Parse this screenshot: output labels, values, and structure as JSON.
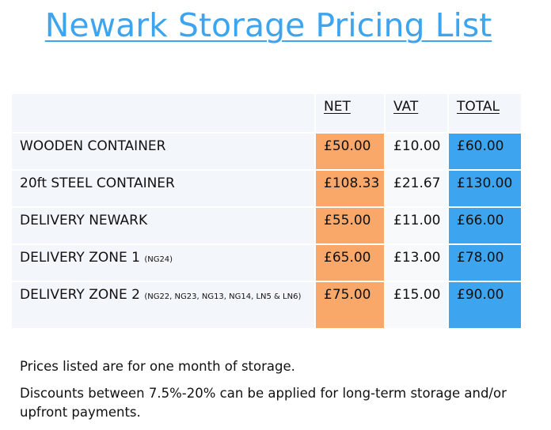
{
  "title": "Newark Storage Pricing List",
  "table": {
    "headers": {
      "item": "",
      "net": "NET",
      "vat": "VAT",
      "total": "TOTAL"
    },
    "rows": [
      {
        "item": "WOODEN CONTAINER",
        "note": "",
        "net": "£50.00",
        "vat": "£10.00",
        "total": "£60.00"
      },
      {
        "item": "20ft STEEL CONTAINER",
        "note": "",
        "net": "£108.33",
        "vat": "£21.67",
        "total": "£130.00"
      },
      {
        "item": "DELIVERY NEWARK",
        "note": "",
        "net": "£55.00",
        "vat": "£11.00",
        "total": "£66.00"
      },
      {
        "item": "DELIVERY ZONE 1",
        "note": "(NG24)",
        "net": "£65.00",
        "vat": "£13.00",
        "total": "£78.00"
      },
      {
        "item": "DELIVERY ZONE 2",
        "note": "(NG22, NG23, NG13, NG14, LN5 & LN6)",
        "net": "£75.00",
        "vat": "£15.00",
        "total": "£90.00"
      }
    ]
  },
  "notes": [
    "Prices listed are for one month of storage.",
    "Discounts between 7.5%-20% can be applied for long-term storage and/or upfront payments."
  ],
  "colors": {
    "title": "#3da5f0",
    "net_fill": "#f9a86a",
    "total_fill": "#3da5f0",
    "row_fill": "#f3f7fb"
  }
}
